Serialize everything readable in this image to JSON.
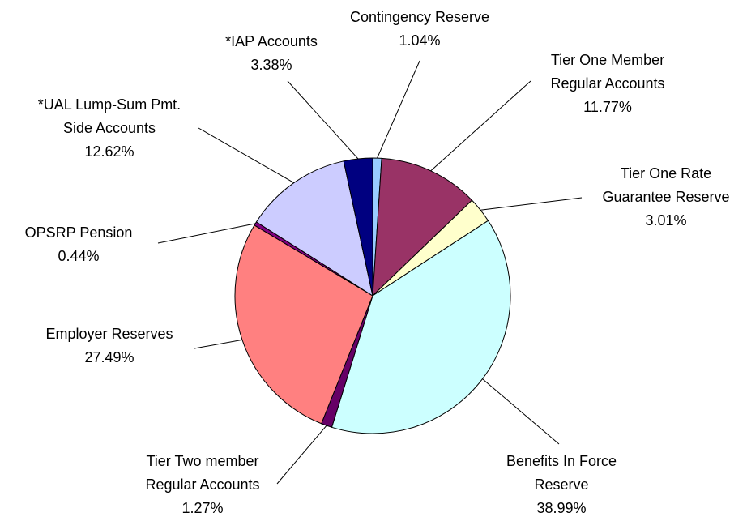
{
  "chart_data": {
    "type": "pie",
    "categories": [
      "Contingency Reserve",
      "Tier One Member\nRegular Accounts",
      "Tier One Rate\nGuarantee Reserve",
      "Benefits In Force\nReserve",
      "Tier Two member\nRegular Accounts",
      "Employer Reserves",
      "OPSRP Pension",
      "*UAL Lump-Sum Pmt.\nSide Accounts",
      "*IAP Accounts"
    ],
    "values": [
      1.04,
      11.77,
      3.01,
      38.99,
      1.27,
      27.49,
      0.44,
      12.62,
      3.38
    ],
    "value_labels": [
      "1.04%",
      "11.77%",
      "3.01%",
      "38.99%",
      "1.27%",
      "27.49%",
      "0.44%",
      "12.62%",
      "3.38%"
    ],
    "colors": [
      "#99ccff",
      "#993366",
      "#ffffcc",
      "#ccffff",
      "#660066",
      "#ff8080",
      "#800080",
      "#ccccff",
      "#000080"
    ]
  }
}
